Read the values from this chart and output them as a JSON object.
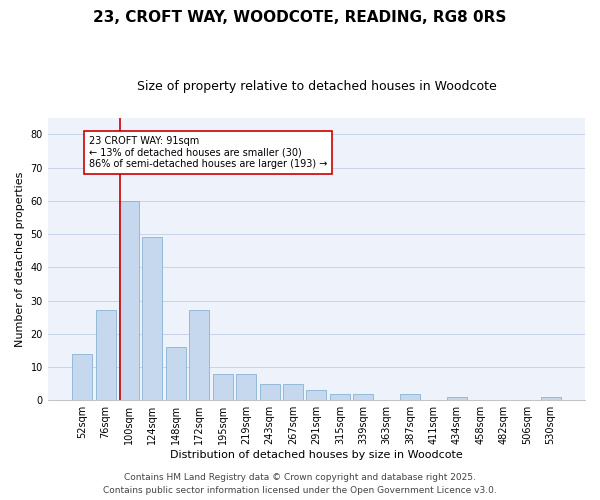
{
  "title": "23, CROFT WAY, WOODCOTE, READING, RG8 0RS",
  "subtitle": "Size of property relative to detached houses in Woodcote",
  "xlabel": "Distribution of detached houses by size in Woodcote",
  "ylabel": "Number of detached properties",
  "bar_color": "#c5d8ee",
  "bar_edge_color": "#7aaad0",
  "background_color": "#eef2fa",
  "categories": [
    "52sqm",
    "76sqm",
    "100sqm",
    "124sqm",
    "148sqm",
    "172sqm",
    "195sqm",
    "219sqm",
    "243sqm",
    "267sqm",
    "291sqm",
    "315sqm",
    "339sqm",
    "363sqm",
    "387sqm",
    "411sqm",
    "434sqm",
    "458sqm",
    "482sqm",
    "506sqm",
    "530sqm"
  ],
  "values": [
    14,
    27,
    60,
    49,
    16,
    27,
    8,
    8,
    5,
    5,
    3,
    2,
    2,
    0,
    2,
    0,
    1,
    0,
    0,
    0,
    1
  ],
  "ylim": [
    0,
    85
  ],
  "yticks": [
    0,
    10,
    20,
    30,
    40,
    50,
    60,
    70,
    80
  ],
  "vline_color": "#cc0000",
  "annotation_text": "23 CROFT WAY: 91sqm\n← 13% of detached houses are smaller (30)\n86% of semi-detached houses are larger (193) →",
  "box_color": "#cc0000",
  "footer1": "Contains HM Land Registry data © Crown copyright and database right 2025.",
  "footer2": "Contains public sector information licensed under the Open Government Licence v3.0.",
  "grid_color": "#c8d4e8",
  "title_fontsize": 11,
  "subtitle_fontsize": 9,
  "label_fontsize": 8,
  "tick_fontsize": 7,
  "annotation_fontsize": 7,
  "footer_fontsize": 6.5
}
